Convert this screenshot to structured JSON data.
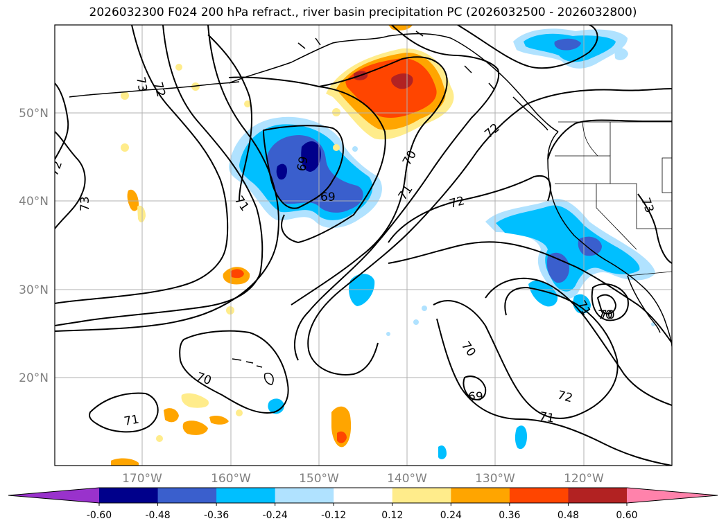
{
  "title": "2026032300 F024 200 hPa refract., river basin precipitation PC (2026032500 - 2026032800)",
  "lat_labels": [
    "50°N",
    "40°N",
    "30°N",
    "20°N"
  ],
  "lon_labels": [
    "170°W",
    "160°W",
    "150°W",
    "140°W",
    "130°W",
    "120°W"
  ],
  "colorbar": {
    "colors": [
      "#9932cc",
      "#00008b",
      "#3a5fcd",
      "#00bfff",
      "#b0e2ff",
      "#ffffff",
      "#ffec8b",
      "#ffa500",
      "#ff4500",
      "#b22222",
      "#ff82ab"
    ],
    "ticks": [
      "-0.60",
      "-0.48",
      "-0.36",
      "-0.24",
      "-0.12",
      "0.12",
      "0.24",
      "0.36",
      "0.48",
      "0.60"
    ]
  },
  "contour_labels": [
    "73",
    "72",
    "72",
    "73",
    "71",
    "69",
    "69",
    "70",
    "71",
    "72",
    "72",
    "73",
    "70",
    "71",
    "70",
    "69",
    "72",
    "71",
    "70",
    "71"
  ],
  "colors": {
    "contour": "#000000",
    "grid": "#b0b0b0",
    "coast": "#000000",
    "tick_label": "#808080"
  }
}
